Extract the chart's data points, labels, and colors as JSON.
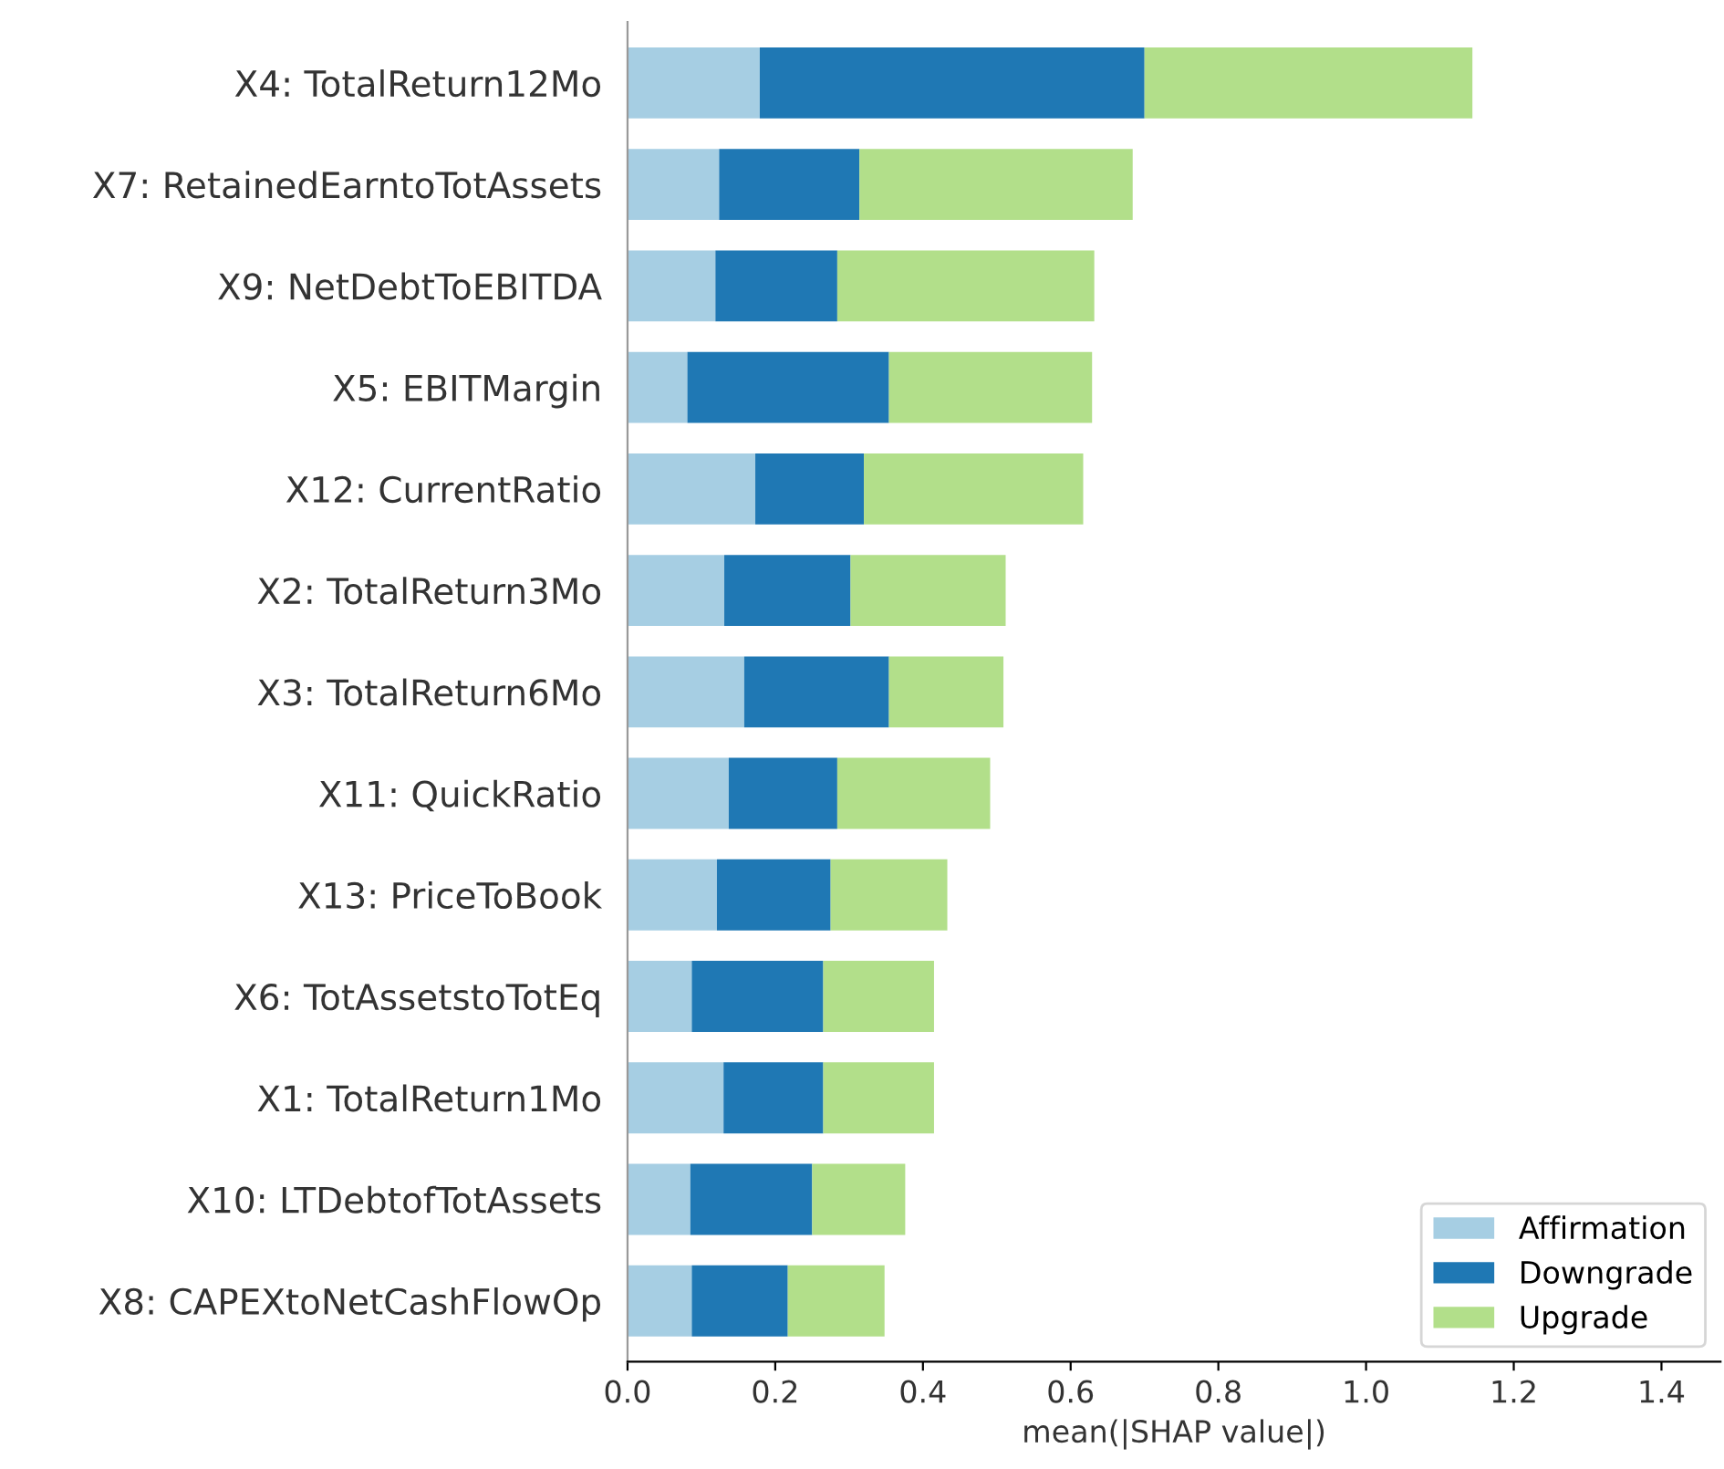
{
  "chart_data": {
    "type": "bar",
    "orientation": "horizontal",
    "stacked": true,
    "xlabel": "mean(|SHAP value|)",
    "categories": [
      "X4: TotalReturn12Mo",
      "X7: RetainedEarntoTotAssets",
      "X9: NetDebtToEBITDA",
      "X5: EBITMargin",
      "X12: CurrentRatio",
      "X2: TotalReturn3Mo",
      "X3: TotalReturn6Mo",
      "X11: QuickRatio",
      "X13: PriceToBook",
      "X6: TotAssetstoTotEq",
      "X1: TotalReturn1Mo",
      "X10: LTDebtofTotAssets",
      "X8: CAPEXtoNetCashFlowOp"
    ],
    "series": [
      {
        "name": "Affirmation",
        "color": "#a6cee3",
        "values": [
          0.179,
          0.124,
          0.119,
          0.081,
          0.173,
          0.131,
          0.158,
          0.137,
          0.121,
          0.087,
          0.13,
          0.085,
          0.087
        ]
      },
      {
        "name": "Downgrade",
        "color": "#1f78b4",
        "values": [
          0.521,
          0.19,
          0.165,
          0.273,
          0.147,
          0.171,
          0.196,
          0.147,
          0.154,
          0.178,
          0.135,
          0.165,
          0.13
        ]
      },
      {
        "name": "Upgrade",
        "color": "#b2df8a",
        "values": [
          0.444,
          0.37,
          0.348,
          0.275,
          0.297,
          0.21,
          0.155,
          0.207,
          0.158,
          0.15,
          0.15,
          0.126,
          0.131
        ]
      }
    ],
    "xlim": [
      0,
      1.48
    ],
    "xticks": [
      {
        "value": 0,
        "label": "0.0"
      },
      {
        "value": 0.2,
        "label": "0.2"
      },
      {
        "value": 0.4,
        "label": "0.4"
      },
      {
        "value": 0.6,
        "label": "0.6"
      },
      {
        "value": 0.8,
        "label": "0.8"
      },
      {
        "value": 1.0,
        "label": "1.0"
      },
      {
        "value": 1.2,
        "label": "1.2"
      },
      {
        "value": 1.4,
        "label": "1.4"
      }
    ],
    "legend": "bottom right",
    "grid": false
  }
}
